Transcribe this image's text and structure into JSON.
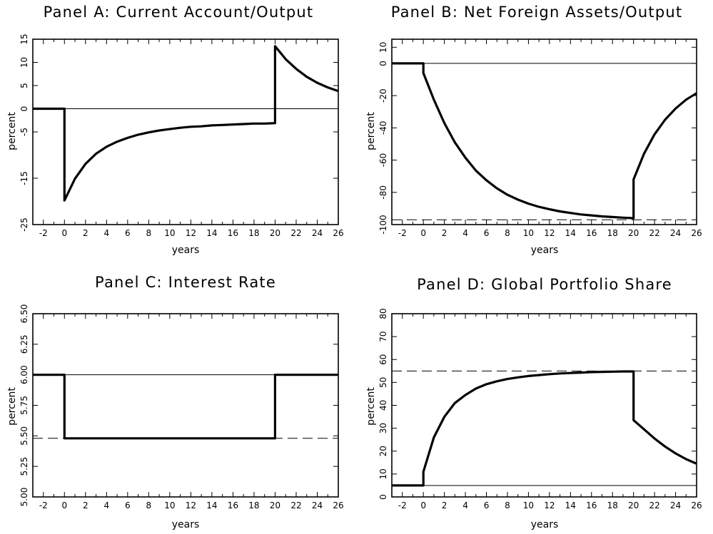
{
  "chart_data": [
    {
      "id": "A",
      "type": "line",
      "title": "Panel A: Current Account/Output",
      "xlabel": "years",
      "ylabel": "percent",
      "xlim": [
        -3,
        26
      ],
      "ylim": [
        -25,
        15
      ],
      "xticks": [
        -2,
        0,
        2,
        4,
        6,
        8,
        10,
        12,
        14,
        16,
        18,
        20,
        22,
        24,
        26
      ],
      "yticks": [
        -25,
        -15,
        -5,
        0,
        5,
        10,
        15
      ],
      "ref_solid": 0,
      "ref_dashed": null,
      "series": [
        {
          "x": [
            -3,
            0,
            0,
            1,
            2,
            3,
            4,
            5,
            6,
            7,
            8,
            9,
            10,
            11,
            12,
            13,
            14,
            15,
            16,
            17,
            18,
            19,
            20,
            20,
            21,
            22,
            23,
            24,
            25,
            26
          ],
          "y": [
            0,
            0,
            -19.8,
            -15.1,
            -11.9,
            -9.7,
            -8.2,
            -7.1,
            -6.3,
            -5.6,
            -5.1,
            -4.7,
            -4.4,
            -4.1,
            -3.9,
            -3.8,
            -3.6,
            -3.5,
            -3.4,
            -3.3,
            -3.2,
            -3.2,
            -3.1,
            13.5,
            10.7,
            8.6,
            6.9,
            5.6,
            4.6,
            3.8
          ]
        }
      ]
    },
    {
      "id": "B",
      "type": "line",
      "title": "Panel B: Net Foreign Assets/Output",
      "xlabel": "years",
      "ylabel": "percent",
      "xlim": [
        -3,
        26
      ],
      "ylim": [
        -100,
        15
      ],
      "xticks": [
        -2,
        0,
        2,
        4,
        6,
        8,
        10,
        12,
        14,
        16,
        18,
        20,
        22,
        24,
        26
      ],
      "yticks": [
        -100,
        -80,
        -60,
        -40,
        -20,
        0,
        10
      ],
      "ref_solid": 0,
      "ref_dashed": -97,
      "series": [
        {
          "x": [
            -3,
            0,
            0,
            1,
            2,
            3,
            4,
            5,
            6,
            7,
            8,
            9,
            10,
            11,
            12,
            13,
            14,
            15,
            16,
            17,
            18,
            19,
            20,
            20,
            21,
            22,
            23,
            24,
            25,
            26
          ],
          "y": [
            0,
            0,
            -6,
            -22.5,
            -37,
            -49,
            -58.5,
            -66.5,
            -72.5,
            -77.5,
            -81.5,
            -84.5,
            -87,
            -89,
            -90.5,
            -91.8,
            -92.8,
            -93.7,
            -94.3,
            -94.9,
            -95.3,
            -95.7,
            -96,
            -72,
            -56,
            -44,
            -35,
            -28,
            -22.5,
            -18.5
          ]
        }
      ]
    },
    {
      "id": "C",
      "type": "line",
      "title": "Panel C: Interest Rate",
      "xlabel": "years",
      "ylabel": "percent",
      "xlim": [
        -3,
        26
      ],
      "ylim": [
        5.0,
        6.5
      ],
      "xticks": [
        -2,
        0,
        2,
        4,
        6,
        8,
        10,
        12,
        14,
        16,
        18,
        20,
        22,
        24,
        26
      ],
      "yticks": [
        5.0,
        5.25,
        5.5,
        5.75,
        6.0,
        6.25,
        6.5
      ],
      "ytick_labels": [
        "5.00",
        "5.25",
        "5.50",
        "5.75",
        "6.00",
        "6.25",
        "6.50"
      ],
      "ref_solid": 6.0,
      "ref_dashed": 5.48,
      "series": [
        {
          "x": [
            -3,
            0,
            0,
            20,
            20,
            26
          ],
          "y": [
            6.0,
            6.0,
            5.48,
            5.48,
            6.0,
            6.0
          ]
        }
      ]
    },
    {
      "id": "D",
      "type": "line",
      "title": "Panel D: Global Portfolio Share",
      "xlabel": "years",
      "ylabel": "percent",
      "xlim": [
        -3,
        26
      ],
      "ylim": [
        0,
        80
      ],
      "xticks": [
        -2,
        0,
        2,
        4,
        6,
        8,
        10,
        12,
        14,
        16,
        18,
        20,
        22,
        24,
        26
      ],
      "yticks": [
        0,
        10,
        20,
        30,
        40,
        50,
        60,
        70,
        80
      ],
      "ref_solid": 5,
      "ref_dashed": 55,
      "series": [
        {
          "x": [
            -3,
            0,
            0,
            1,
            2,
            3,
            4,
            5,
            6,
            7,
            8,
            9,
            10,
            11,
            12,
            13,
            14,
            15,
            16,
            17,
            18,
            19,
            20,
            20,
            21,
            22,
            23,
            24,
            25,
            26
          ],
          "y": [
            5,
            5,
            11,
            26,
            35,
            41,
            44.5,
            47.3,
            49.2,
            50.5,
            51.5,
            52.2,
            52.8,
            53.2,
            53.6,
            53.9,
            54.1,
            54.3,
            54.5,
            54.6,
            54.7,
            54.8,
            54.8,
            33.5,
            29.5,
            25.5,
            22,
            19,
            16.5,
            14.5
          ]
        }
      ]
    }
  ]
}
